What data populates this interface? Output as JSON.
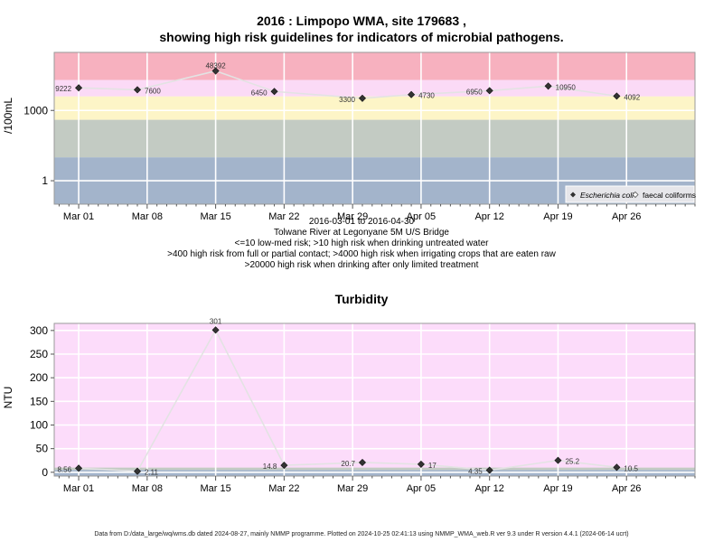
{
  "page": {
    "title_line1": "2016 : Limpopo WMA, site 179683 ,",
    "title_line2": "showing high risk guidelines for indicators of microbial pathogens.",
    "caption": [
      "2016-03-01 to 2016-04-30",
      "Tolwane River at Legonyane 5M U/S Bridge",
      "<=10 low-med risk; >10 high risk when drinking untreated water",
      ">400 high risk from full or partial contact; >4000 high risk when irrigating crops that are eaten raw",
      ">20000 high risk when drinking after only limited treatment"
    ],
    "chart2_title": "Turbidity",
    "footer": "Data from D:/data_large/wq/wms.db dated 2024-08-27, mainly NMMP programme. Plotted on 2024-10-25 02:41:13 using NMMP_WMA_web.R ver 9.3 under R version 4.4.1 (2024-06-14 ucrt)"
  },
  "chart_data": [
    {
      "type": "scatter",
      "ylabel": "/100mL",
      "yscale": "log",
      "yticks": [
        1,
        1000
      ],
      "ylim": [
        0.1,
        300000
      ],
      "x_ticks": [
        "Mar 01",
        "Mar 08",
        "Mar 15",
        "Mar 22",
        "Mar 29",
        "Apr 05",
        "Apr 12",
        "Apr 19",
        "Apr 26"
      ],
      "x_tick_days": [
        0,
        7,
        14,
        21,
        28,
        35,
        42,
        49,
        56
      ],
      "xlim_days": [
        -2.5,
        63
      ],
      "risk_bands": [
        {
          "from": 0.1,
          "to": 10,
          "color": "#a3b4cb"
        },
        {
          "from": 10,
          "to": 400,
          "color": "#c3cbc3"
        },
        {
          "from": 400,
          "to": 4000,
          "color": "#fdf5c7"
        },
        {
          "from": 4000,
          "to": 20000,
          "color": "#fbdaf6"
        },
        {
          "from": 20000,
          "to": 300000,
          "color": "#f7b1bf"
        }
      ],
      "series": [
        {
          "name": "Escherichia coli",
          "points": [
            {
              "day": 0,
              "value": 9222,
              "label": "9222"
            },
            {
              "day": 6,
              "value": 7600,
              "label": "7600"
            },
            {
              "day": 14,
              "value": 48392,
              "label": "48392"
            },
            {
              "day": 20,
              "value": 6450,
              "label": "6450"
            },
            {
              "day": 29,
              "value": 3300,
              "label": "3300"
            },
            {
              "day": 34,
              "value": 4730,
              "label": "4730"
            },
            {
              "day": 42,
              "value": 6950,
              "label": "6950"
            },
            {
              "day": 48,
              "value": 10950,
              "label": "10950"
            },
            {
              "day": 55,
              "value": 4092,
              "label": "4092"
            }
          ]
        },
        {
          "name": "faecal coliforms",
          "points": []
        }
      ],
      "legend_position": "bottom-right",
      "grid": true
    },
    {
      "type": "scatter",
      "title": "Turbidity",
      "ylabel": "NTU",
      "yticks": [
        0,
        50,
        100,
        150,
        200,
        250,
        300
      ],
      "ylim": [
        -8,
        315
      ],
      "x_ticks": [
        "Mar 01",
        "Mar 08",
        "Mar 15",
        "Mar 22",
        "Mar 29",
        "Apr 05",
        "Apr 12",
        "Apr 19",
        "Apr 26"
      ],
      "x_tick_days": [
        0,
        7,
        14,
        21,
        28,
        35,
        42,
        49,
        56
      ],
      "xlim_days": [
        -2.5,
        63
      ],
      "risk_bands": [
        {
          "from": -8,
          "to": 5,
          "color": "#a3b4cb"
        },
        {
          "from": 5,
          "to": 10,
          "color": "#c3cbc3"
        },
        {
          "from": 10,
          "to": 315,
          "color": "#fcdcfa"
        }
      ],
      "series": [
        {
          "name": "Turbidity",
          "points": [
            {
              "day": 0,
              "value": 8.56,
              "label": "8.56"
            },
            {
              "day": 6,
              "value": 2.11,
              "label": "2.11"
            },
            {
              "day": 14,
              "value": 301,
              "label": "301"
            },
            {
              "day": 21,
              "value": 14.8,
              "label": "14.8"
            },
            {
              "day": 29,
              "value": 20.7,
              "label": "20.7"
            },
            {
              "day": 35,
              "value": 17,
              "label": "17"
            },
            {
              "day": 42,
              "value": 4.35,
              "label": "4.35"
            },
            {
              "day": 49,
              "value": 25.2,
              "label": "25.2"
            },
            {
              "day": 55,
              "value": 10.5,
              "label": "10.5"
            }
          ]
        }
      ],
      "grid": true
    }
  ]
}
